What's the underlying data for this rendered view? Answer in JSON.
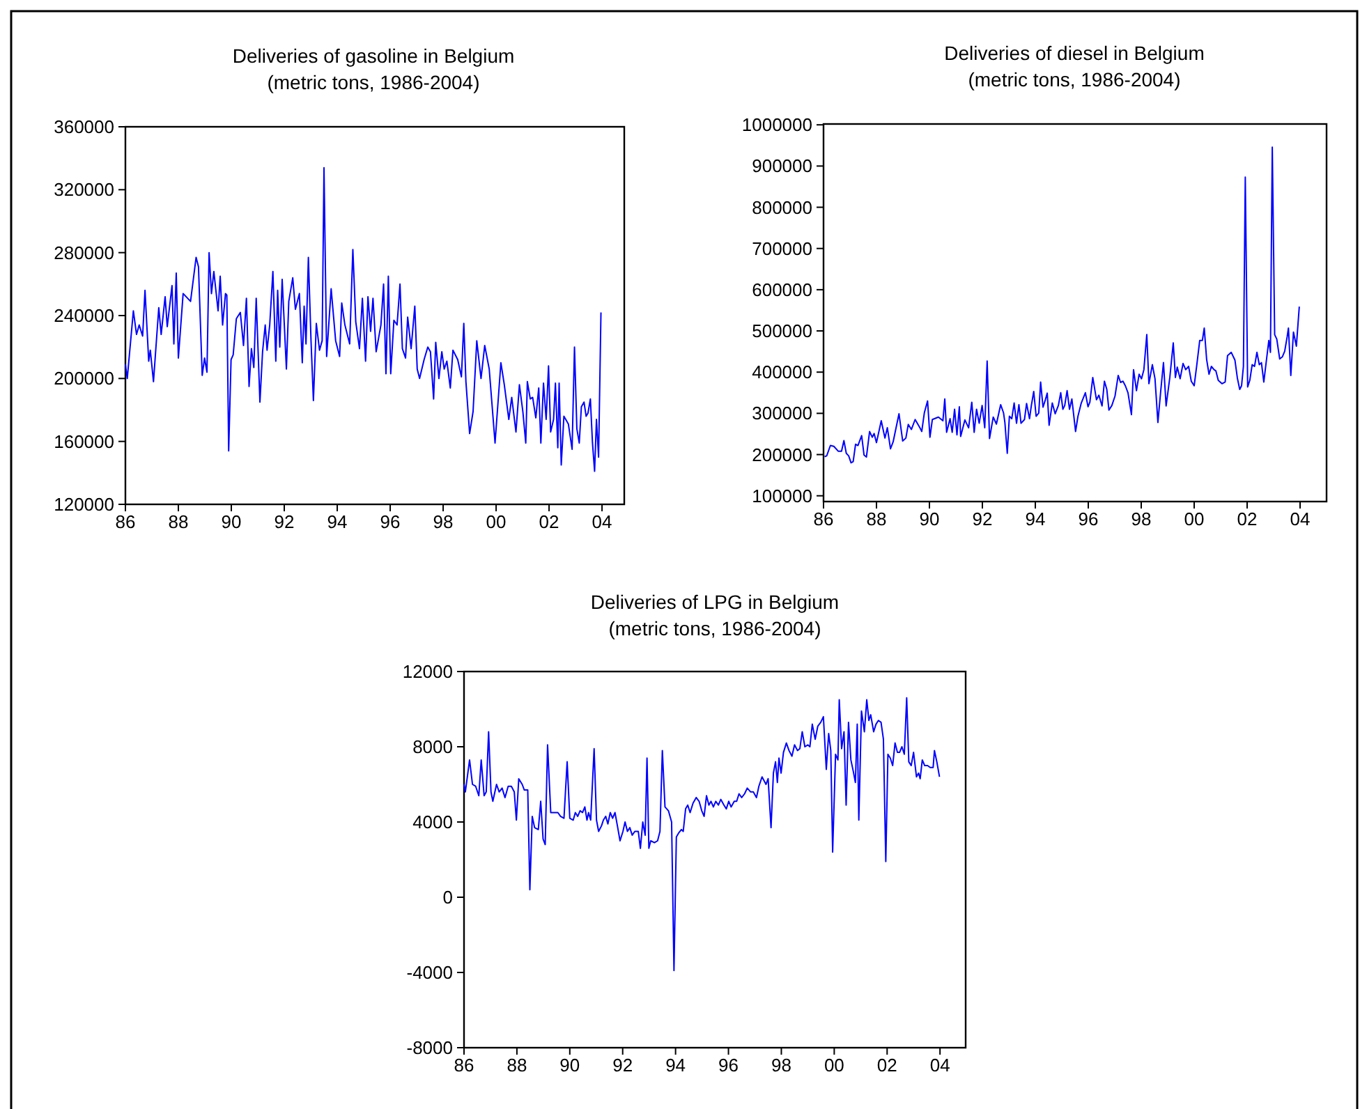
{
  "chart_data": [
    {
      "type": "line",
      "title": "Deliveries of gasoline in Belgium",
      "subtitle": "(metric tons, 1986-2004)",
      "xlim": [
        1986,
        2004.84
      ],
      "ylim": [
        120000,
        360000
      ],
      "yticks": [
        120000,
        160000,
        200000,
        240000,
        280000,
        320000,
        360000
      ],
      "xticks": [
        {
          "value": 1986,
          "label": "86"
        },
        {
          "value": 1988,
          "label": "88"
        },
        {
          "value": 1990,
          "label": "90"
        },
        {
          "value": 1992,
          "label": "92"
        },
        {
          "value": 1994,
          "label": "94"
        },
        {
          "value": 1996,
          "label": "96"
        },
        {
          "value": 1998,
          "label": "98"
        },
        {
          "value": 2000,
          "label": "00"
        },
        {
          "value": 2002,
          "label": "02"
        },
        {
          "value": 2004,
          "label": "04"
        }
      ],
      "grid": false,
      "x": [
        1986.0,
        1986.07,
        1986.3,
        1986.42,
        1986.52,
        1986.65,
        1986.74,
        1986.88,
        1986.94,
        1987.06,
        1987.26,
        1987.35,
        1987.5,
        1987.58,
        1987.76,
        1987.83,
        1987.92,
        1988.0,
        1988.18,
        1988.46,
        1988.67,
        1988.76,
        1988.9,
        1988.99,
        1989.08,
        1989.16,
        1989.25,
        1989.34,
        1989.5,
        1989.58,
        1989.67,
        1989.78,
        1989.83,
        1989.9,
        1989.99,
        1990.07,
        1990.19,
        1990.34,
        1990.46,
        1990.57,
        1990.67,
        1990.76,
        1990.85,
        1990.94,
        1991.08,
        1991.18,
        1991.28,
        1991.35,
        1991.45,
        1991.57,
        1991.68,
        1991.75,
        1991.83,
        1991.92,
        1992.08,
        1992.17,
        1992.32,
        1992.42,
        1992.57,
        1992.68,
        1992.75,
        1992.82,
        1992.91,
        1993.01,
        1993.1,
        1993.21,
        1993.33,
        1993.43,
        1993.5,
        1993.6,
        1993.77,
        1993.94,
        1994.09,
        1994.17,
        1994.29,
        1994.47,
        1994.59,
        1994.7,
        1994.84,
        1994.95,
        1995.07,
        1995.16,
        1995.26,
        1995.35,
        1995.47,
        1995.65,
        1995.75,
        1995.84,
        1995.93,
        1996.02,
        1996.14,
        1996.26,
        1996.37,
        1996.46,
        1996.58,
        1996.66,
        1996.79,
        1996.93,
        1997.02,
        1997.11,
        1997.28,
        1997.42,
        1997.52,
        1997.64,
        1997.72,
        1997.84,
        1997.95,
        1998.04,
        1998.14,
        1998.27,
        1998.37,
        1998.55,
        1998.69,
        1998.78,
        1998.86,
        1999.0,
        1999.13,
        1999.27,
        1999.43,
        1999.57,
        1999.74,
        1999.96,
        2000.06,
        2000.18,
        2000.31,
        2000.48,
        2000.59,
        2000.75,
        2000.88,
        2001.01,
        2001.12,
        2001.18,
        2001.29,
        2001.38,
        2001.5,
        2001.61,
        2001.69,
        2001.79,
        2001.89,
        2001.98,
        2002.06,
        2002.17,
        2002.24,
        2002.33,
        2002.38,
        2002.46,
        2002.56,
        2002.73,
        2002.87,
        2002.96,
        2003.05,
        2003.14,
        2003.22,
        2003.32,
        2003.4,
        2003.47,
        2003.56,
        2003.64,
        2003.72,
        2003.79,
        2003.87,
        2003.96
      ],
      "series": [
        {
          "color": "#0000ff",
          "values": [
            209000,
            200000,
            243000,
            228000,
            234000,
            227000,
            256000,
            211000,
            218000,
            198000,
            245000,
            228000,
            252000,
            233000,
            259000,
            222000,
            267000,
            213000,
            254000,
            249000,
            277000,
            271000,
            202000,
            213000,
            204000,
            280000,
            254000,
            268000,
            243000,
            265000,
            234000,
            254000,
            253000,
            154000,
            212000,
            215000,
            238000,
            242000,
            221000,
            251000,
            195000,
            219000,
            207000,
            251000,
            185000,
            217000,
            234000,
            218000,
            234000,
            268000,
            211000,
            256000,
            220000,
            263000,
            206000,
            249000,
            264000,
            244000,
            254000,
            210000,
            246000,
            222000,
            277000,
            224000,
            186000,
            235000,
            218000,
            224000,
            334000,
            214000,
            257000,
            224000,
            214000,
            248000,
            234000,
            222000,
            282000,
            236000,
            219000,
            251000,
            211000,
            252000,
            230000,
            251000,
            217000,
            234000,
            260000,
            203000,
            265000,
            203000,
            237000,
            234000,
            260000,
            219000,
            213000,
            239000,
            219000,
            246000,
            206000,
            200000,
            212000,
            220000,
            217000,
            187000,
            223000,
            200000,
            217000,
            206000,
            211000,
            194000,
            218000,
            212000,
            201000,
            235000,
            198000,
            165000,
            179000,
            224000,
            200000,
            221000,
            206000,
            159000,
            182000,
            210000,
            196000,
            174000,
            188000,
            166000,
            196000,
            179000,
            159000,
            198000,
            187000,
            188000,
            175000,
            194000,
            159000,
            197000,
            174000,
            208000,
            166000,
            174000,
            197000,
            156000,
            197000,
            145000,
            176000,
            171000,
            155000,
            220000,
            168000,
            159000,
            182000,
            185000,
            176000,
            178000,
            187000,
            159000,
            141000,
            174000,
            150000,
            242000
          ]
        }
      ]
    },
    {
      "type": "line",
      "title": "Deliveries of diesel in Belgium",
      "subtitle": "(metric tons, 1986-2004)",
      "xlim": [
        1986,
        2005
      ],
      "ylim": [
        86000,
        1002000
      ],
      "yticks": [
        100000,
        200000,
        300000,
        400000,
        500000,
        600000,
        700000,
        800000,
        900000,
        1000000
      ],
      "xticks": [
        {
          "value": 1986,
          "label": "86"
        },
        {
          "value": 1988,
          "label": "88"
        },
        {
          "value": 1990,
          "label": "90"
        },
        {
          "value": 1992,
          "label": "92"
        },
        {
          "value": 1994,
          "label": "94"
        },
        {
          "value": 1996,
          "label": "96"
        },
        {
          "value": 1998,
          "label": "98"
        },
        {
          "value": 2000,
          "label": "00"
        },
        {
          "value": 2002,
          "label": "02"
        },
        {
          "value": 2004,
          "label": "04"
        }
      ],
      "grid": false,
      "x": [
        1986.04,
        1986.12,
        1986.26,
        1986.39,
        1986.56,
        1986.68,
        1986.77,
        1986.86,
        1986.95,
        1987.04,
        1987.12,
        1987.21,
        1987.3,
        1987.44,
        1987.53,
        1987.62,
        1987.74,
        1987.84,
        1987.91,
        1988.0,
        1988.18,
        1988.32,
        1988.41,
        1988.53,
        1988.63,
        1988.85,
        1988.99,
        1989.11,
        1989.2,
        1989.32,
        1989.46,
        1989.64,
        1989.71,
        1989.81,
        1989.93,
        1990.02,
        1990.11,
        1990.34,
        1990.51,
        1990.58,
        1990.65,
        1990.78,
        1990.86,
        1990.95,
        1991.04,
        1991.13,
        1991.18,
        1991.34,
        1991.48,
        1991.6,
        1991.69,
        1991.78,
        1991.88,
        1991.99,
        1992.09,
        1992.18,
        1992.27,
        1992.41,
        1992.53,
        1992.69,
        1992.8,
        1992.85,
        1992.94,
        1993.02,
        1993.11,
        1993.2,
        1993.29,
        1993.38,
        1993.46,
        1993.59,
        1993.67,
        1993.78,
        1993.85,
        1993.94,
        1994.03,
        1994.13,
        1994.2,
        1994.29,
        1994.38,
        1994.45,
        1994.52,
        1994.64,
        1994.75,
        1994.87,
        1994.96,
        1995.04,
        1995.11,
        1995.2,
        1995.29,
        1995.38,
        1995.52,
        1995.61,
        1995.73,
        1995.89,
        1995.99,
        1996.06,
        1996.17,
        1996.31,
        1996.4,
        1996.52,
        1996.61,
        1996.7,
        1996.78,
        1996.89,
        1997.01,
        1997.13,
        1997.22,
        1997.31,
        1997.4,
        1997.5,
        1997.63,
        1997.71,
        1997.82,
        1997.92,
        1998.01,
        1998.1,
        1998.21,
        1998.29,
        1998.42,
        1998.52,
        1998.63,
        1998.73,
        1998.84,
        1998.94,
        1999.08,
        1999.21,
        1999.29,
        1999.36,
        1999.47,
        1999.58,
        1999.68,
        1999.79,
        1999.89,
        2000.0,
        2000.1,
        2000.21,
        2000.31,
        2000.38,
        2000.47,
        2000.56,
        2000.65,
        2000.75,
        2000.82,
        2000.91,
        2001.05,
        2001.17,
        2001.26,
        2001.4,
        2001.54,
        2001.63,
        2001.72,
        2001.79,
        2001.86,
        2001.93,
        2002.02,
        2002.1,
        2002.19,
        2002.28,
        2002.37,
        2002.46,
        2002.54,
        2002.63,
        2002.74,
        2002.82,
        2002.88,
        2002.95,
        2003.04,
        2003.12,
        2003.23,
        2003.33,
        2003.42,
        2003.51,
        2003.56,
        2003.65,
        2003.75,
        2003.86,
        2003.97
      ],
      "series": [
        {
          "color": "#0000ff",
          "values": [
            195000,
            197000,
            222000,
            220000,
            208000,
            208000,
            234000,
            203000,
            197000,
            180000,
            183000,
            225000,
            222000,
            246000,
            199000,
            194000,
            256000,
            242000,
            251000,
            229000,
            282000,
            240000,
            265000,
            214000,
            231000,
            299000,
            233000,
            240000,
            273000,
            261000,
            285000,
            265000,
            256000,
            302000,
            330000,
            242000,
            285000,
            291000,
            282000,
            335000,
            254000,
            287000,
            254000,
            310000,
            248000,
            316000,
            244000,
            284000,
            265000,
            327000,
            254000,
            310000,
            276000,
            319000,
            265000,
            427000,
            239000,
            291000,
            274000,
            321000,
            301000,
            278000,
            203000,
            293000,
            287000,
            325000,
            276000,
            321000,
            276000,
            285000,
            324000,
            287000,
            319000,
            353000,
            293000,
            301000,
            376000,
            315000,
            333000,
            349000,
            271000,
            325000,
            299000,
            319000,
            350000,
            310000,
            319000,
            355000,
            310000,
            335000,
            256000,
            293000,
            324000,
            350000,
            316000,
            327000,
            387000,
            333000,
            344000,
            318000,
            378000,
            358000,
            308000,
            319000,
            342000,
            392000,
            375000,
            378000,
            367000,
            350000,
            297000,
            406000,
            355000,
            395000,
            384000,
            406000,
            491000,
            372000,
            418000,
            384000,
            278000,
            350000,
            423000,
            318000,
            387000,
            471000,
            387000,
            412000,
            384000,
            421000,
            406000,
            414000,
            378000,
            367000,
            418000,
            477000,
            477000,
            507000,
            431000,
            395000,
            414000,
            406000,
            403000,
            380000,
            372000,
            376000,
            440000,
            448000,
            429000,
            386000,
            358000,
            367000,
            414000,
            873000,
            364000,
            380000,
            418000,
            414000,
            448000,
            418000,
            423000,
            376000,
            435000,
            477000,
            448000,
            946000,
            491000,
            480000,
            432000,
            437000,
            451000,
            485000,
            507000,
            392000,
            497000,
            463000,
            559000
          ]
        }
      ]
    },
    {
      "type": "line",
      "title": "Deliveries of LPG in Belgium",
      "subtitle": "(metric tons, 1986-2004)",
      "xlim": [
        1986,
        2004.97
      ],
      "ylim": [
        -8000,
        12000
      ],
      "yticks": [
        -8000,
        -4000,
        0,
        4000,
        8000,
        12000
      ],
      "xticks": [
        {
          "value": 1986,
          "label": "86"
        },
        {
          "value": 1988,
          "label": "88"
        },
        {
          "value": 1990,
          "label": "90"
        },
        {
          "value": 1992,
          "label": "92"
        },
        {
          "value": 1994,
          "label": "94"
        },
        {
          "value": 1996,
          "label": "96"
        },
        {
          "value": 1998,
          "label": "98"
        },
        {
          "value": 2000,
          "label": "00"
        },
        {
          "value": 2002,
          "label": "02"
        },
        {
          "value": 2004,
          "label": "04"
        }
      ],
      "grid": false,
      "x": [
        1986.0,
        1986.05,
        1986.21,
        1986.32,
        1986.44,
        1986.56,
        1986.65,
        1986.76,
        1986.84,
        1986.93,
        1987.02,
        1987.09,
        1987.23,
        1987.33,
        1987.44,
        1987.55,
        1987.67,
        1987.79,
        1987.9,
        1987.98,
        1988.07,
        1988.2,
        1988.28,
        1988.41,
        1988.49,
        1988.58,
        1988.67,
        1988.81,
        1988.9,
        1988.99,
        1989.07,
        1989.16,
        1989.28,
        1989.42,
        1989.55,
        1989.65,
        1989.78,
        1989.9,
        1990.0,
        1990.13,
        1990.21,
        1990.3,
        1990.39,
        1990.48,
        1990.57,
        1990.65,
        1990.71,
        1990.79,
        1990.92,
        1991.01,
        1991.09,
        1991.2,
        1991.27,
        1991.36,
        1991.44,
        1991.53,
        1991.62,
        1991.71,
        1991.8,
        1991.9,
        1992.01,
        1992.09,
        1992.18,
        1992.27,
        1992.36,
        1992.46,
        1992.59,
        1992.67,
        1992.76,
        1992.85,
        1992.92,
        1992.99,
        1993.06,
        1993.2,
        1993.32,
        1993.41,
        1993.5,
        1993.6,
        1993.73,
        1993.85,
        1993.94,
        1994.03,
        1994.11,
        1994.22,
        1994.29,
        1994.38,
        1994.46,
        1994.55,
        1994.66,
        1994.78,
        1994.89,
        1994.99,
        1995.08,
        1995.17,
        1995.26,
        1995.34,
        1995.43,
        1995.52,
        1995.62,
        1995.71,
        1995.83,
        1995.92,
        1996.01,
        1996.1,
        1996.22,
        1996.31,
        1996.4,
        1996.5,
        1996.61,
        1996.71,
        1996.84,
        1996.94,
        1997.06,
        1997.15,
        1997.27,
        1997.42,
        1997.5,
        1997.61,
        1997.7,
        1997.78,
        1997.85,
        1997.91,
        1997.99,
        1998.08,
        1998.19,
        1998.29,
        1998.4,
        1998.5,
        1998.61,
        1998.7,
        1998.79,
        1998.89,
        1999.0,
        1999.08,
        1999.17,
        1999.28,
        1999.38,
        1999.49,
        1999.59,
        1999.7,
        1999.79,
        1999.87,
        1999.94,
        2000.05,
        2000.14,
        2000.19,
        2000.28,
        2000.37,
        2000.45,
        2000.54,
        2000.63,
        2000.72,
        2000.8,
        2000.87,
        2000.93,
        2001.03,
        2001.14,
        2001.23,
        2001.31,
        2001.38,
        2001.49,
        2001.58,
        2001.67,
        2001.77,
        2001.86,
        2001.95,
        2002.03,
        2002.12,
        2002.21,
        2002.3,
        2002.39,
        2002.47,
        2002.56,
        2002.65,
        2002.74,
        2002.82,
        2002.91,
        2003.0,
        2003.11,
        2003.19,
        2003.25,
        2003.33,
        2003.42,
        2003.53,
        2003.63,
        2003.74,
        2003.79,
        2003.88,
        2003.98
      ],
      "series": [
        {
          "color": "#0000ff",
          "values": [
            6000,
            5600,
            7300,
            6000,
            5900,
            5400,
            7300,
            5400,
            5600,
            8800,
            5600,
            5100,
            6000,
            5600,
            5800,
            5300,
            5900,
            5900,
            5600,
            4100,
            6300,
            6000,
            5700,
            5700,
            400,
            4300,
            3700,
            3600,
            5100,
            3100,
            2800,
            8100,
            4500,
            4500,
            4500,
            4300,
            4200,
            7200,
            4200,
            4100,
            4500,
            4300,
            4600,
            4500,
            4800,
            4100,
            4500,
            4100,
            7900,
            4100,
            3500,
            3800,
            4100,
            4300,
            3900,
            4500,
            4200,
            4500,
            3800,
            3000,
            3500,
            4000,
            3500,
            3700,
            3300,
            3500,
            3500,
            2600,
            4000,
            3300,
            7400,
            2600,
            3000,
            2900,
            3000,
            3500,
            7800,
            4800,
            4600,
            4000,
            -3900,
            3200,
            3400,
            3600,
            3500,
            4700,
            4900,
            4500,
            5000,
            5300,
            5100,
            4600,
            4300,
            5400,
            4900,
            5100,
            4800,
            5100,
            4900,
            5200,
            4900,
            4700,
            5100,
            4800,
            5100,
            5100,
            5500,
            5300,
            5500,
            5800,
            5600,
            5600,
            5300,
            5900,
            6400,
            6000,
            6300,
            3700,
            6600,
            7200,
            6100,
            7400,
            6600,
            7700,
            8200,
            7800,
            7500,
            8100,
            7800,
            7900,
            8800,
            8000,
            8100,
            8000,
            9200,
            8400,
            9100,
            9300,
            9600,
            6800,
            8700,
            7800,
            2400,
            7600,
            7300,
            10500,
            7900,
            8800,
            4900,
            9300,
            7300,
            6700,
            6100,
            9200,
            4100,
            9900,
            8800,
            10500,
            9400,
            9700,
            8800,
            9200,
            9400,
            9300,
            8400,
            1900,
            7600,
            7400,
            7000,
            8200,
            7700,
            7700,
            8000,
            7600,
            10600,
            7200,
            7000,
            7700,
            6400,
            6600,
            6300,
            7300,
            7000,
            7000,
            6900,
            6900,
            7800,
            7200,
            6400
          ]
        }
      ]
    }
  ]
}
